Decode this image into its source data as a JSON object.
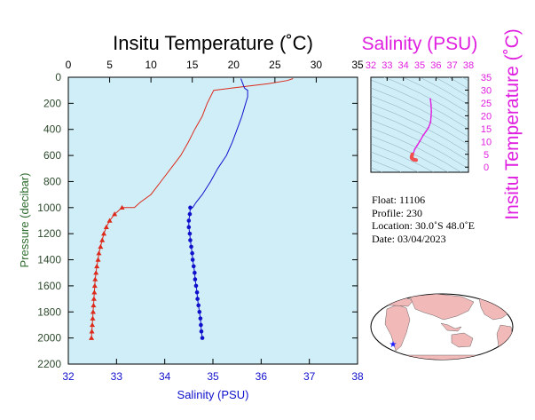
{
  "chart_data": [
    {
      "type": "line",
      "title": "Insitu Temperature (˚C)",
      "xlabel": "Salinity (PSU)",
      "ylabel": "Pressure (decibar)",
      "top_axis": {
        "range": [
          0,
          35
        ],
        "ticks": [
          0,
          5,
          10,
          15,
          20,
          25,
          30,
          35
        ]
      },
      "bottom_axis": {
        "range": [
          32,
          38
        ],
        "ticks": [
          32,
          33,
          34,
          35,
          36,
          37,
          38
        ]
      },
      "y_axis": {
        "range": [
          0,
          2200
        ],
        "inverted": true,
        "ticks": [
          0,
          200,
          400,
          600,
          800,
          1000,
          1200,
          1400,
          1600,
          1800,
          2000,
          2200
        ]
      },
      "grid": false,
      "background_color": "#cfeef8",
      "series": [
        {
          "axis": "top",
          "color": "#dd2a1b",
          "line": [
            [
              27.2,
              10
            ],
            [
              26.5,
              25
            ],
            [
              24.2,
              50
            ],
            [
              21.5,
              70
            ],
            [
              19.5,
              85
            ],
            [
              17.6,
              100
            ],
            [
              17.2,
              150
            ],
            [
              16.8,
              200
            ],
            [
              16.2,
              300
            ],
            [
              15.3,
              400
            ],
            [
              14.5,
              500
            ],
            [
              13.6,
              600
            ],
            [
              12.4,
              700
            ],
            [
              11.2,
              800
            ],
            [
              10.0,
              900
            ],
            [
              8.7,
              960
            ],
            [
              8.0,
              1000
            ]
          ],
          "markers": [
            [
              6.5,
              1000
            ],
            [
              5.6,
              1050
            ],
            [
              5.0,
              1100
            ],
            [
              4.6,
              1150
            ],
            [
              4.3,
              1200
            ],
            [
              4.1,
              1250
            ],
            [
              3.9,
              1300
            ],
            [
              3.7,
              1350
            ],
            [
              3.6,
              1400
            ],
            [
              3.45,
              1450
            ],
            [
              3.35,
              1500
            ],
            [
              3.25,
              1550
            ],
            [
              3.2,
              1600
            ],
            [
              3.15,
              1650
            ],
            [
              3.1,
              1700
            ],
            [
              3.05,
              1750
            ],
            [
              3.0,
              1800
            ],
            [
              2.95,
              1850
            ],
            [
              2.9,
              1900
            ],
            [
              2.85,
              1950
            ],
            [
              2.8,
              2000
            ]
          ]
        },
        {
          "axis": "bottom",
          "color": "#1010cc",
          "line": [
            [
              35.58,
              10
            ],
            [
              35.6,
              30
            ],
            [
              35.62,
              50
            ],
            [
              35.64,
              70
            ],
            [
              35.66,
              85
            ],
            [
              35.72,
              100
            ],
            [
              35.72,
              150
            ],
            [
              35.68,
              200
            ],
            [
              35.6,
              300
            ],
            [
              35.5,
              400
            ],
            [
              35.4,
              500
            ],
            [
              35.28,
              600
            ],
            [
              35.1,
              700
            ],
            [
              34.95,
              800
            ],
            [
              34.78,
              900
            ],
            [
              34.65,
              960
            ],
            [
              34.58,
              1000
            ]
          ],
          "markers": [
            [
              34.53,
              1000
            ],
            [
              34.52,
              1050
            ],
            [
              34.5,
              1100
            ],
            [
              34.5,
              1150
            ],
            [
              34.52,
              1200
            ],
            [
              34.53,
              1250
            ],
            [
              34.55,
              1300
            ],
            [
              34.57,
              1350
            ],
            [
              34.58,
              1400
            ],
            [
              34.6,
              1450
            ],
            [
              34.62,
              1500
            ],
            [
              34.63,
              1550
            ],
            [
              34.65,
              1600
            ],
            [
              34.67,
              1650
            ],
            [
              34.68,
              1700
            ],
            [
              34.7,
              1750
            ],
            [
              34.72,
              1800
            ],
            [
              34.74,
              1850
            ],
            [
              34.75,
              1900
            ],
            [
              34.76,
              1950
            ],
            [
              34.78,
              2000
            ]
          ]
        }
      ]
    },
    {
      "type": "scatter",
      "title": "Salinity (PSU)",
      "ylabel": "Insitu Temperature (˚C)",
      "x_axis": {
        "range": [
          32,
          38
        ],
        "ticks": [
          32,
          33,
          34,
          35,
          36,
          37,
          38
        ]
      },
      "y_axis": {
        "range": [
          -2,
          35
        ],
        "ticks": [
          0,
          5,
          10,
          15,
          20,
          25,
          30,
          35
        ]
      },
      "background_color": "#cfeef8",
      "accent_color": "#e020e0",
      "series": [
        {
          "color": "#e020e0",
          "points": [
            [
              35.66,
              26.5
            ],
            [
              35.7,
              24.3
            ],
            [
              35.72,
              21.5
            ],
            [
              35.7,
              19.5
            ],
            [
              35.67,
              17.5
            ],
            [
              35.55,
              15.5
            ],
            [
              35.4,
              14.0
            ],
            [
              35.2,
              12.2
            ],
            [
              35.0,
              10.0
            ],
            [
              34.85,
              8.5
            ],
            [
              34.7,
              7.0
            ],
            [
              34.62,
              5.5
            ]
          ]
        },
        {
          "color": "#f05050",
          "points": [
            [
              34.55,
              5.0
            ],
            [
              34.53,
              4.5
            ],
            [
              34.5,
              4.1
            ],
            [
              34.5,
              3.8
            ],
            [
              34.52,
              3.5
            ],
            [
              34.55,
              3.3
            ],
            [
              34.58,
              3.1
            ],
            [
              34.62,
              2.95
            ],
            [
              34.67,
              2.85
            ],
            [
              34.72,
              2.8
            ],
            [
              34.78,
              2.75
            ]
          ]
        }
      ]
    }
  ],
  "float_info": {
    "float": "Float:  11106",
    "profile": "Profile:  230",
    "location": "Location:  30.0˚S  48.0˚E",
    "date": "Date:  03/04/2023"
  },
  "map": {
    "land_color": "#f2b9b9",
    "ocean_color": "#ffffff",
    "marker_color": "#1a1aff"
  }
}
